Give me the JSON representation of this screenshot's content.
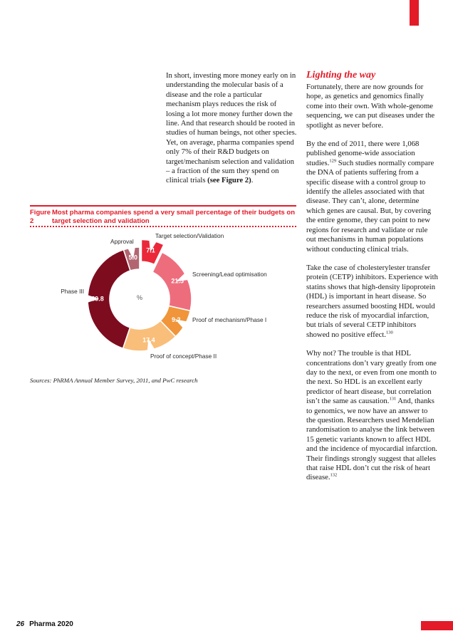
{
  "page": {
    "accent_color": "#e31b28",
    "footer": {
      "page_number": "26",
      "brand": "Pharma 2020"
    }
  },
  "left_column": {
    "paragraph": [
      {
        "t": "In short,  investing more money early on in understanding the molecular basis of a disease and the role a particular mechanism plays reduces the risk of losing a lot more money further down the line. And that research should be rooted in studies of human beings, not other species. Yet, on average, pharma companies spend only 7% of their R&D budgets on target/mechanism selection and validation – a fraction of the sum they spend on clinical trials "
      },
      {
        "t": "(see Figure 2)",
        "b": true
      },
      {
        "t": "."
      }
    ]
  },
  "right_column": {
    "heading": "Lighting the way",
    "paragraphs": [
      [
        {
          "t": "Fortunately, there are now grounds for hope, as genetics and genomics finally come into their own. With whole-genome sequencing, we can put diseases under the spotlight as never before."
        }
      ],
      [
        {
          "t": "By the end of 2011, there were 1,068 published genome-wide association studies."
        },
        {
          "sup": "129"
        },
        {
          "t": " Such studies normally compare the DNA of patients suffering from a specific disease with a control group to identify the alleles associated with that disease. They can’t, alone, determine which genes are causal. But, by covering the entire genome, they can point to new regions for research and validate or rule out mechanisms in human populations without conducting clinical trials."
        }
      ],
      [
        {
          "t": "Take the case of cholesterylester transfer protein (CETP) inhibitors. Experience with statins shows that high-density lipoprotein (HDL) is important in heart disease. So researchers assumed boosting HDL would reduce the risk of myocardial infarction, but trials of several CETP inhibitors showed no positive effect."
        },
        {
          "sup": "130"
        }
      ],
      [
        {
          "t": "Why not? The trouble is that HDL concentrations don’t vary greatly from one day to the next, or even from one month to the next. So HDL is an excellent early predictor of heart disease, but correlation isn’t the same as causation."
        },
        {
          "sup": "131"
        },
        {
          "t": " And, thanks to genomics, we now have an answer to the question. Researchers used Mendelian randomisation to analyse the link between 15 genetic variants known to affect HDL and the incidence of myocardial infarction. Their findings strongly suggest that alleles that raise HDL don’t cut the risk of heart disease."
        },
        {
          "sup": "132"
        }
      ]
    ]
  },
  "figure": {
    "label": "Figure 2",
    "title_line1": "Most pharma companies spend a very small percentage of their budgets on",
    "title_line2": "target selection and validation",
    "sources": "Sources: PhRMA Annual Member Survey, 2011, and PwC research"
  },
  "chart_data": {
    "type": "pie",
    "subtype": "donut",
    "title": "Figure 2  Most pharma companies spend a very small percentage of their budgets on target selection and validation",
    "center_label": "%",
    "legend_position": "around",
    "segments": [
      {
        "label": "Target selection/Validation",
        "value": 7.1,
        "color": "#ea2839",
        "exploded": true
      },
      {
        "label": "Screening/Lead optimisation",
        "value": 21.5,
        "color": "#ee6d7d"
      },
      {
        "label": "Proof of mechanism/Phase I",
        "value": 9.2,
        "color": "#f0953a"
      },
      {
        "label": "Proof of concept/Phase II",
        "value": 17.4,
        "color": "#f9be79"
      },
      {
        "label": "Phase III",
        "value": 39.8,
        "color": "#7d0c1f"
      },
      {
        "label": "Approval",
        "value": 5.0,
        "color": "#b26570"
      }
    ],
    "sources": "Sources: PhRMA Annual Member Survey, 2011, and PwC research"
  }
}
